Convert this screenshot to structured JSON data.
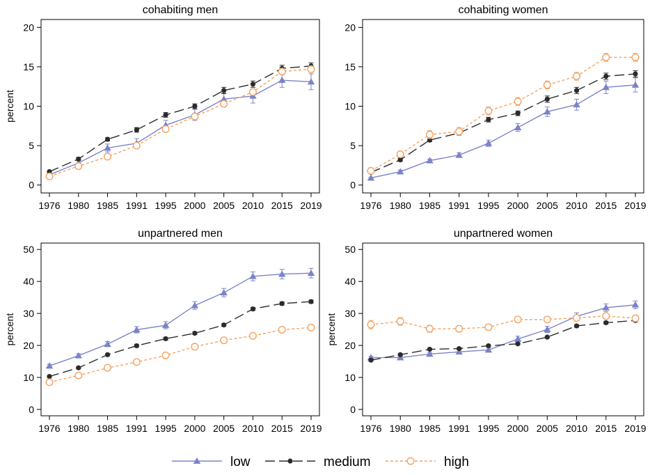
{
  "legend": {
    "position": "bottom",
    "items": [
      {
        "label": "low",
        "color": "#7b83c8",
        "marker": "triangle",
        "dash": "solid"
      },
      {
        "label": "medium",
        "color": "#2b2b2b",
        "marker": "circle",
        "dash": "long-dash"
      },
      {
        "label": "high",
        "color": "#f4a261",
        "marker": "hollow-circle",
        "dash": "short-dash"
      }
    ]
  },
  "chart_data": [
    {
      "type": "line",
      "title": "cohabiting men",
      "ylabel": "percent",
      "xlabel": "",
      "categories": [
        "1976",
        "1980",
        "1985",
        "1991",
        "1995",
        "2000",
        "2005",
        "2010",
        "2015",
        "2019"
      ],
      "ylim": [
        -1,
        21
      ],
      "yticks": [
        0,
        5,
        10,
        15,
        20
      ],
      "grid": false,
      "series": [
        {
          "name": "low",
          "values": [
            1.3,
            2.8,
            4.7,
            5.3,
            7.6,
            8.9,
            10.9,
            11.3,
            13.3,
            13.1
          ],
          "errors": [
            0.2,
            0.3,
            0.5,
            0.6,
            0.6,
            0.7,
            0.8,
            0.9,
            0.9,
            1.0
          ]
        },
        {
          "name": "medium",
          "values": [
            1.7,
            3.3,
            5.8,
            7.0,
            8.9,
            10.0,
            12.0,
            12.8,
            14.8,
            15.1
          ],
          "errors": [
            0.1,
            0.2,
            0.2,
            0.3,
            0.3,
            0.3,
            0.4,
            0.4,
            0.4,
            0.4
          ]
        },
        {
          "name": "high",
          "values": [
            1.1,
            2.4,
            3.6,
            5.0,
            7.1,
            8.7,
            10.3,
            11.8,
            14.4,
            14.7
          ],
          "errors": [
            0.2,
            0.2,
            0.3,
            0.3,
            0.3,
            0.3,
            0.3,
            0.4,
            0.4,
            0.4
          ]
        }
      ]
    },
    {
      "type": "line",
      "title": "cohabiting women",
      "ylabel": "",
      "xlabel": "",
      "categories": [
        "1976",
        "1980",
        "1985",
        "1991",
        "1995",
        "2000",
        "2005",
        "2010",
        "2015",
        "2019"
      ],
      "ylim": [
        -1,
        21
      ],
      "yticks": [
        0,
        5,
        10,
        15,
        20
      ],
      "grid": false,
      "series": [
        {
          "name": "low",
          "values": [
            0.9,
            1.7,
            3.1,
            3.8,
            5.3,
            7.3,
            9.3,
            10.2,
            12.4,
            12.7
          ],
          "errors": [
            0.1,
            0.2,
            0.2,
            0.3,
            0.4,
            0.5,
            0.6,
            0.7,
            0.8,
            0.9
          ]
        },
        {
          "name": "medium",
          "values": [
            1.6,
            3.2,
            5.7,
            6.6,
            8.3,
            9.1,
            10.9,
            12.0,
            13.8,
            14.1
          ],
          "errors": [
            0.1,
            0.2,
            0.2,
            0.3,
            0.3,
            0.3,
            0.4,
            0.4,
            0.4,
            0.4
          ]
        },
        {
          "name": "high",
          "values": [
            1.8,
            3.9,
            6.4,
            6.8,
            9.4,
            10.6,
            12.7,
            13.8,
            16.2,
            16.2
          ],
          "errors": [
            0.3,
            0.4,
            0.5,
            0.5,
            0.5,
            0.5,
            0.5,
            0.5,
            0.5,
            0.5
          ]
        }
      ]
    },
    {
      "type": "line",
      "title": "unpartnered men",
      "ylabel": "percent",
      "xlabel": "",
      "categories": [
        "1976",
        "1980",
        "1985",
        "1991",
        "1995",
        "2000",
        "2005",
        "2010",
        "2015",
        "2019"
      ],
      "ylim": [
        -2,
        52
      ],
      "yticks": [
        0,
        10,
        20,
        30,
        40,
        50
      ],
      "grid": false,
      "series": [
        {
          "name": "low",
          "values": [
            13.6,
            16.8,
            20.4,
            24.9,
            26.3,
            32.5,
            36.5,
            41.6,
            42.3,
            42.6
          ],
          "errors": [
            0.5,
            0.6,
            0.8,
            1.0,
            1.1,
            1.2,
            1.3,
            1.4,
            1.5,
            1.5
          ]
        },
        {
          "name": "medium",
          "values": [
            10.3,
            13.0,
            17.1,
            19.9,
            22.1,
            23.8,
            26.4,
            31.4,
            33.1,
            33.7
          ],
          "errors": [
            0.3,
            0.3,
            0.3,
            0.4,
            0.4,
            0.4,
            0.4,
            0.5,
            0.5,
            0.5
          ]
        },
        {
          "name": "high",
          "values": [
            8.5,
            10.6,
            13.0,
            14.8,
            16.9,
            19.6,
            21.6,
            23.0,
            24.9,
            25.6
          ],
          "errors": [
            0.4,
            0.4,
            0.4,
            0.4,
            0.4,
            0.4,
            0.4,
            0.4,
            0.4,
            0.4
          ]
        }
      ]
    },
    {
      "type": "line",
      "title": "unpartnered women",
      "ylabel": "percent",
      "xlabel": "",
      "categories": [
        "1976",
        "1980",
        "1985",
        "1991",
        "1995",
        "2000",
        "2005",
        "2010",
        "2015",
        "2019"
      ],
      "ylim": [
        -2,
        52
      ],
      "yticks": [
        0,
        10,
        20,
        30,
        40,
        50
      ],
      "grid": false,
      "series": [
        {
          "name": "low",
          "values": [
            16.2,
            16.2,
            17.3,
            18.0,
            18.6,
            22.0,
            25.0,
            29.1,
            31.8,
            32.7
          ],
          "errors": [
            0.4,
            0.4,
            0.5,
            0.6,
            0.7,
            0.9,
            1.0,
            1.1,
            1.2,
            1.2
          ]
        },
        {
          "name": "medium",
          "values": [
            15.4,
            17.1,
            18.8,
            19.0,
            19.9,
            20.5,
            22.6,
            26.1,
            27.1,
            27.8
          ],
          "errors": [
            0.3,
            0.3,
            0.3,
            0.3,
            0.3,
            0.3,
            0.3,
            0.4,
            0.4,
            0.4
          ]
        },
        {
          "name": "high",
          "values": [
            26.5,
            27.5,
            25.2,
            25.2,
            25.7,
            28.1,
            28.1,
            28.6,
            29.2,
            28.5
          ],
          "errors": [
            1.3,
            1.2,
            1.1,
            1.0,
            0.9,
            0.8,
            0.7,
            0.7,
            0.7,
            0.6
          ]
        }
      ]
    }
  ]
}
